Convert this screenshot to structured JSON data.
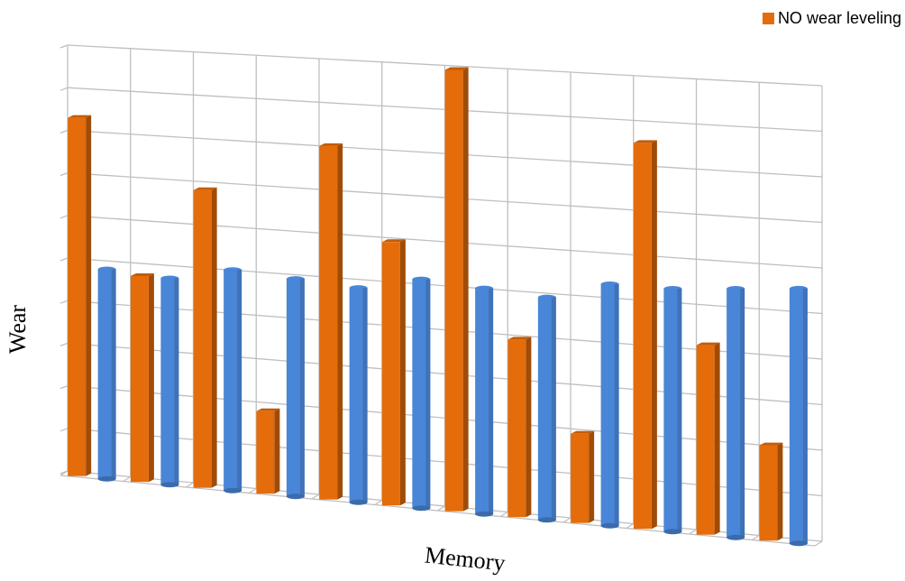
{
  "chart_data": {
    "type": "bar3d",
    "legend_position": "top-right",
    "x_label": "Memory",
    "y_label": "Wear",
    "categories": [
      null,
      null,
      null,
      null,
      null,
      null,
      null,
      null,
      null,
      null,
      null,
      null
    ],
    "series": [
      {
        "name": "NO wear leveling",
        "color": "#e46c0a",
        "values": [
          8.4,
          4.8,
          6.9,
          1.9,
          8.1,
          6.0,
          10.0,
          4.0,
          2.0,
          8.6,
          4.2,
          2.1
        ]
      },
      {
        "color": "#4a86d8",
        "values": [
          4.9,
          4.8,
          5.1,
          5.0,
          4.9,
          5.2,
          5.1,
          5.0,
          5.4,
          5.4,
          5.5,
          5.6
        ]
      }
    ],
    "ylim": [
      0,
      10
    ],
    "yticks": [
      0,
      1,
      2,
      3,
      4,
      5,
      6,
      7,
      8,
      9,
      10
    ],
    "grid": true
  }
}
